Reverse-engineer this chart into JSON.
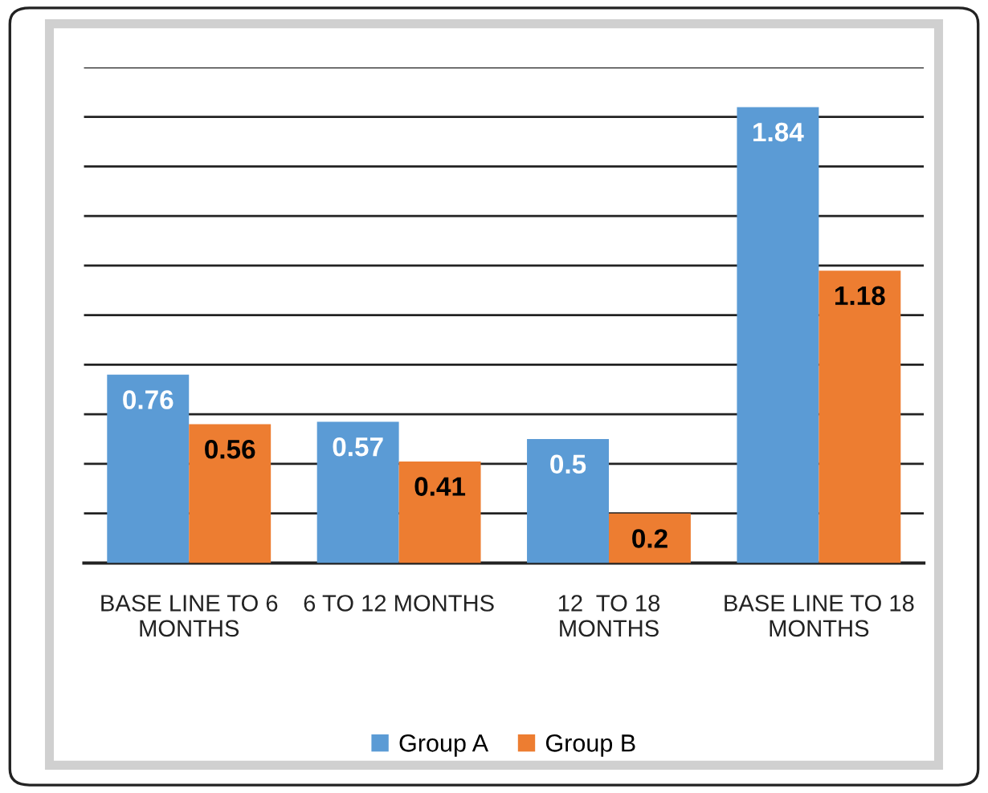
{
  "chart_data": {
    "type": "bar",
    "categories": [
      "BASE LINE TO 6\nMONTHS",
      "6 TO 12 MONTHS",
      "12  TO 18\nMONTHS",
      "BASE LINE TO 18\nMONTHS"
    ],
    "series": [
      {
        "name": "Group A",
        "color": "#5b9bd5",
        "values": [
          0.76,
          0.57,
          0.5,
          1.84
        ]
      },
      {
        "name": "Group B",
        "color": "#ed7d31",
        "values": [
          0.56,
          0.41,
          0.2,
          1.18
        ]
      }
    ],
    "ylim": [
      0,
      2
    ],
    "yticks": [
      {
        "value": 0,
        "label": null
      },
      {
        "value": 0.2,
        "label": null
      },
      {
        "value": 0.4,
        "label": null
      },
      {
        "value": 0.6,
        "label": null
      },
      {
        "value": 0.8,
        "label": null
      },
      {
        "value": 1.0,
        "label": null
      },
      {
        "value": 1.2,
        "label": null
      },
      {
        "value": 1.4,
        "label": null
      },
      {
        "value": 1.6,
        "label": null
      },
      {
        "value": 1.8,
        "label": null
      },
      {
        "value": 2.0,
        "label": null
      }
    ],
    "tick_labels": "x",
    "grid": "y",
    "legend": "bottom",
    "data_labels": true
  }
}
